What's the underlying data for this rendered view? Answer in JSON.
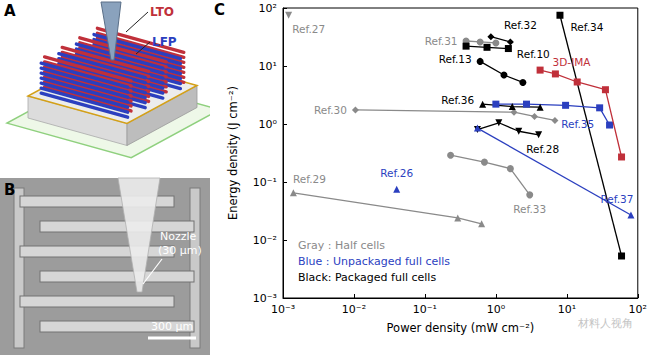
{
  "panel_labels": [
    "A",
    "B",
    "C"
  ],
  "panel_a": {
    "labels": [
      {
        "text": "LTO",
        "color": "#c0303a"
      },
      {
        "text": "LFP",
        "color": "#2b3fbf"
      }
    ]
  },
  "panel_b": {
    "nozzle_label": [
      "Nozzle",
      "(30 μm)"
    ],
    "scale_bar": "300 μm"
  },
  "watermark": "材料人视角",
  "chart_data": {
    "type": "line",
    "x_label": "Power density (mW cm⁻²)",
    "y_label": "Energy density (J cm⁻²)",
    "log": true,
    "grid": false,
    "xlim": [
      0.001,
      100
    ],
    "ylim": [
      0.001,
      100
    ],
    "xticks": [
      {
        "value": 0.001,
        "label": "10⁻³"
      },
      {
        "value": 0.01,
        "label": "10⁻²"
      },
      {
        "value": 0.1,
        "label": "10⁻¹"
      },
      {
        "value": 1,
        "label": "10⁰"
      },
      {
        "value": 10,
        "label": "10¹"
      },
      {
        "value": 100,
        "label": "10²"
      }
    ],
    "yticks": [
      {
        "value": 0.001,
        "label": "10⁻³"
      },
      {
        "value": 0.01,
        "label": "10⁻²"
      },
      {
        "value": 0.1,
        "label": "10⁻¹"
      },
      {
        "value": 1,
        "label": "10⁰"
      },
      {
        "value": 10,
        "label": "10¹"
      },
      {
        "value": 100,
        "label": "10²"
      }
    ],
    "annotations": [
      {
        "text": "Gray : Half cells",
        "color": "#8a8a8a"
      },
      {
        "text": "Blue : Unpackaged full cells",
        "color": "#2b3fbf"
      },
      {
        "text": "Black: Packaged full cells",
        "color": "#000000"
      }
    ],
    "series": [
      {
        "name": "Ref.27",
        "color": "#8a8a8a",
        "marker": "triangle-down",
        "x": [
          0.0012
        ],
        "values": [
          75
        ]
      },
      {
        "name": "Ref.31",
        "color": "#8a8a8a",
        "marker": "circle",
        "x": [
          0.38,
          0.6,
          1.0
        ],
        "values": [
          27,
          26,
          25
        ]
      },
      {
        "name": "Ref.32",
        "color": "#000000",
        "marker": "diamond",
        "x": [
          0.85,
          1.6
        ],
        "values": [
          32,
          26
        ]
      },
      {
        "name": "Ref.10",
        "color": "#000000",
        "marker": "square",
        "x": [
          0.38,
          0.75,
          1.5
        ],
        "values": [
          22,
          21,
          20
        ]
      },
      {
        "name": "Ref.13",
        "color": "#000000",
        "marker": "circle",
        "x": [
          0.6,
          1.3,
          2.4
        ],
        "values": [
          12,
          7,
          5.2
        ]
      },
      {
        "name": "Ref.34",
        "color": "#000000",
        "marker": "square",
        "x": [
          8,
          59
        ],
        "values": [
          75,
          0.0053
        ]
      },
      {
        "name": "3D-IMA",
        "color": "#c0303a",
        "marker": "square",
        "x": [
          4.2,
          6.9,
          14,
          35,
          59
        ],
        "values": [
          8.5,
          7.3,
          5.3,
          3.9,
          0.27
        ]
      },
      {
        "name": "Ref.30",
        "color": "#8a8a8a",
        "marker": "diamond",
        "x": [
          0.0105,
          1.8,
          3.5,
          6.8
        ],
        "values": [
          1.75,
          1.6,
          1.35,
          1.15
        ]
      },
      {
        "name": "Ref.36",
        "color": "#000000",
        "marker": "triangle",
        "x": [
          0.65,
          1.7,
          4.2
        ],
        "values": [
          2.2,
          2.0,
          1.95
        ]
      },
      {
        "name": "Ref.35",
        "color": "#2b3fbf",
        "marker": "square",
        "x": [
          1.0,
          2.7,
          9.6,
          29,
          40
        ],
        "values": [
          2.2,
          2.2,
          2.1,
          1.9,
          0.96
        ]
      },
      {
        "name": "Ref.28",
        "color": "#000000",
        "marker": "triangle-down",
        "x": [
          0.55,
          1.1,
          2.1,
          4.0
        ],
        "values": [
          0.8,
          1.05,
          0.75,
          0.65
        ]
      },
      {
        "name": "Ref.37",
        "color": "#2b3fbf",
        "marker": "triangle",
        "x": [
          0.55,
          80
        ],
        "values": [
          0.85,
          0.027
        ]
      },
      {
        "name": "Ref.26",
        "color": "#2b3fbf",
        "marker": "triangle",
        "x": [
          0.04
        ],
        "values": [
          0.075
        ]
      },
      {
        "name": "Ref.33",
        "color": "#8a8a8a",
        "marker": "circle",
        "x": [
          0.23,
          0.69,
          1.6,
          3.0
        ],
        "values": [
          0.29,
          0.22,
          0.17,
          0.06
        ]
      },
      {
        "name": "Ref.29",
        "color": "#8a8a8a",
        "marker": "triangle",
        "x": [
          0.0014,
          0.29,
          0.63
        ],
        "values": [
          0.065,
          0.024,
          0.019
        ]
      }
    ]
  }
}
